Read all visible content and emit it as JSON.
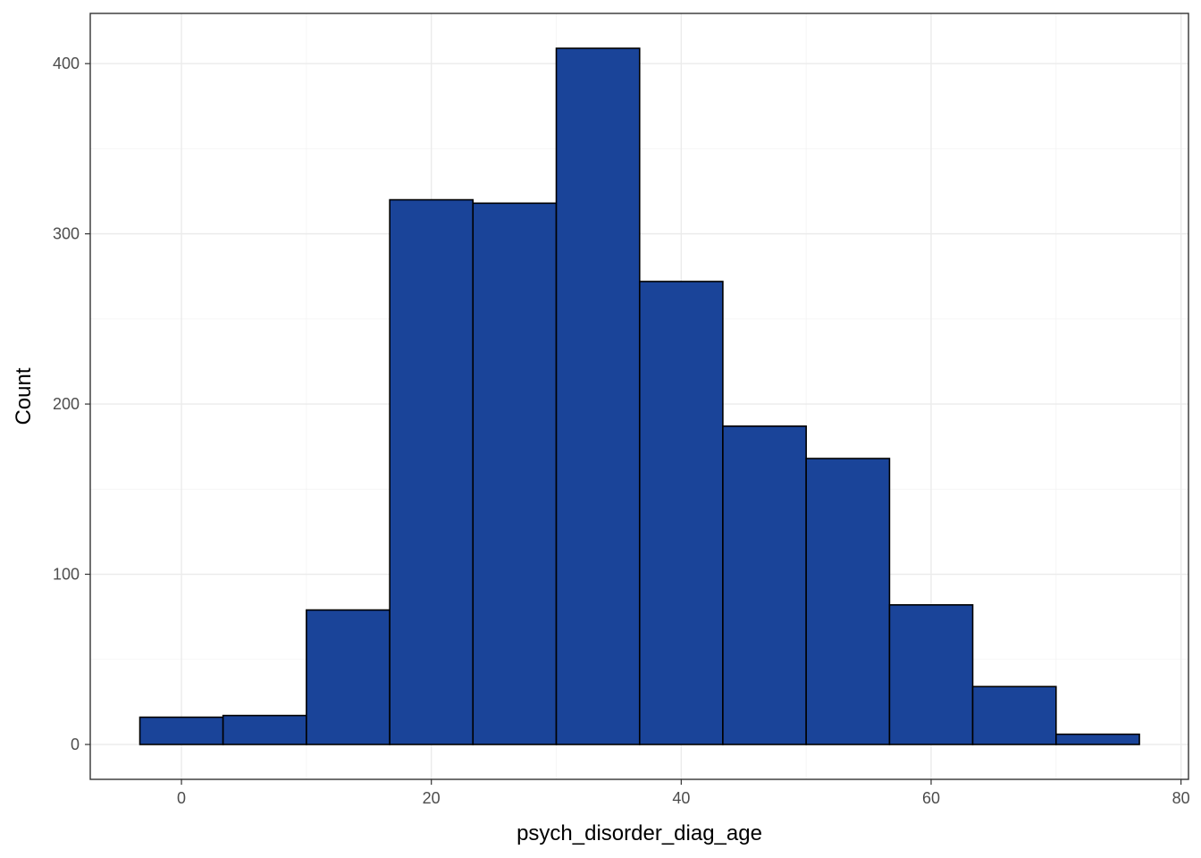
{
  "chart_data": {
    "type": "bar",
    "subtype": "histogram",
    "title": "",
    "xlabel": "psych_disorder_diag_age",
    "ylabel": "Count",
    "bins": [
      {
        "x0": -3.33,
        "x1": 3.33,
        "count": 16
      },
      {
        "x0": 3.33,
        "x1": 10.0,
        "count": 17
      },
      {
        "x0": 10.0,
        "x1": 16.67,
        "count": 79
      },
      {
        "x0": 16.67,
        "x1": 23.33,
        "count": 320
      },
      {
        "x0": 23.33,
        "x1": 30.0,
        "count": 318
      },
      {
        "x0": 30.0,
        "x1": 36.67,
        "count": 409
      },
      {
        "x0": 36.67,
        "x1": 43.33,
        "count": 272
      },
      {
        "x0": 43.33,
        "x1": 50.0,
        "count": 187
      },
      {
        "x0": 50.0,
        "x1": 56.67,
        "count": 168
      },
      {
        "x0": 56.67,
        "x1": 63.33,
        "count": 82
      },
      {
        "x0": 63.33,
        "x1": 70.0,
        "count": 34
      },
      {
        "x0": 70.0,
        "x1": 76.67,
        "count": 6
      }
    ],
    "xlim": [
      -7.3,
      80.6
    ],
    "ylim": [
      -20.5,
      429.5
    ],
    "x_ticks": [
      0,
      20,
      40,
      60,
      80
    ],
    "x_tick_labels": [
      "0",
      "20",
      "40",
      "60",
      "80"
    ],
    "x_minor_ticks": [
      10,
      30,
      50,
      70
    ],
    "y_ticks": [
      0,
      100,
      200,
      300,
      400
    ],
    "y_tick_labels": [
      "0",
      "100",
      "200",
      "300",
      "400"
    ],
    "y_minor_ticks": [
      50,
      150,
      250,
      350
    ],
    "grid": true,
    "legend": "none",
    "colors": {
      "bar_fill": "#1A4499",
      "bar_outline": "#000000",
      "grid": "#EBEBEB",
      "panel_border": "#333333"
    }
  }
}
